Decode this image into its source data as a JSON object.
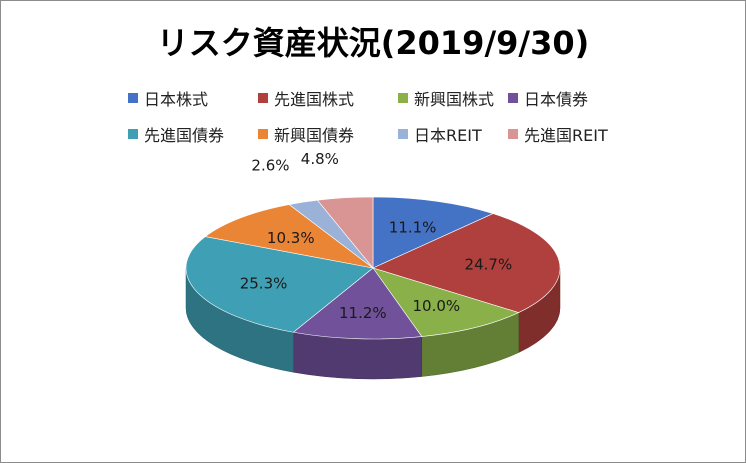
{
  "chart_data": {
    "type": "pie",
    "title": "リスク資産状況(2019/9/30)",
    "categories": [
      "日本株式",
      "先進国株式",
      "新興国株式",
      "日本債券",
      "先進国債券",
      "新興国債券",
      "日本REIT",
      "先進国REIT"
    ],
    "values": [
      11.1,
      24.7,
      10.0,
      11.2,
      25.3,
      10.3,
      2.6,
      4.8
    ],
    "labels": [
      "11.1%",
      "24.7%",
      "10.0%",
      "11.2%",
      "25.3%",
      "10.3%",
      "2.6%",
      "4.8%"
    ],
    "colors": [
      "#4472c4",
      "#b0403d",
      "#8ab04a",
      "#70519a",
      "#3fa0b5",
      "#e98535",
      "#9ab2d8",
      "#d99594"
    ],
    "legend_position": "top",
    "style": "3d"
  }
}
